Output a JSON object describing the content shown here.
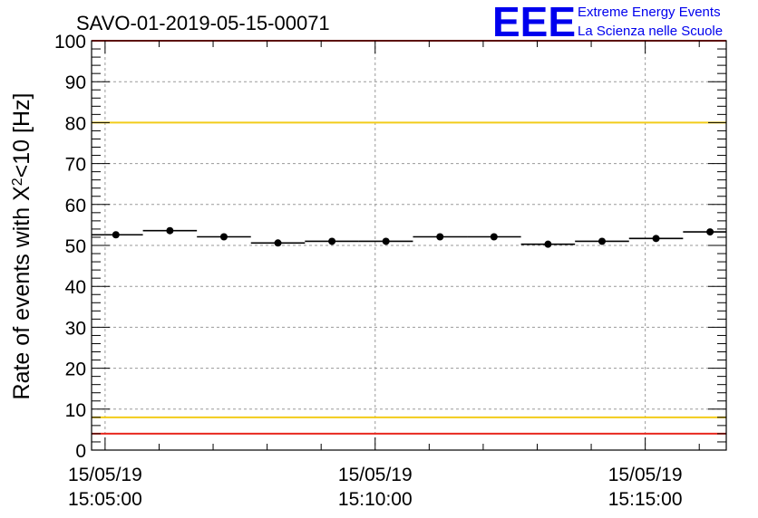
{
  "chart_data": {
    "type": "scatter",
    "title": "SAVO-01-2019-05-15-00071",
    "ylabel": "Rate of events with X^2<10 [Hz]",
    "ylabel_parts": {
      "pre": "Rate of events with X",
      "sup": "2",
      "post": "<10 [Hz]"
    },
    "xlabel": "",
    "ylim": [
      0,
      100
    ],
    "xlim_minutes": [
      -0.25,
      11.5
    ],
    "grid": true,
    "y_ticks": [
      0,
      10,
      20,
      30,
      40,
      50,
      60,
      70,
      80,
      90,
      100
    ],
    "x_ticks": [
      {
        "minute": 0,
        "date": "15/05/19",
        "time": "15:05:00"
      },
      {
        "minute": 5,
        "date": "15/05/19",
        "time": "15:10:00"
      },
      {
        "minute": 10,
        "date": "15/05/19",
        "time": "15:15:00"
      }
    ],
    "bin_width_minutes": 1,
    "points": [
      {
        "minute": 0.2,
        "value": 52.6
      },
      {
        "minute": 1.2,
        "value": 53.6
      },
      {
        "minute": 2.2,
        "value": 52.1
      },
      {
        "minute": 3.2,
        "value": 50.6
      },
      {
        "minute": 4.2,
        "value": 51.0
      },
      {
        "minute": 5.2,
        "value": 51.0
      },
      {
        "minute": 6.2,
        "value": 52.1
      },
      {
        "minute": 7.2,
        "value": 52.1
      },
      {
        "minute": 8.2,
        "value": 50.3
      },
      {
        "minute": 9.2,
        "value": 51.0
      },
      {
        "minute": 10.2,
        "value": 51.7
      },
      {
        "minute": 11.2,
        "value": 53.3
      }
    ],
    "reference_lines": [
      {
        "value": 100,
        "color": "#e8281e"
      },
      {
        "value": 80,
        "color": "#f2cc1a"
      },
      {
        "value": 8,
        "color": "#f2cc1a"
      },
      {
        "value": 4,
        "color": "#e8281e"
      }
    ]
  },
  "logo": {
    "mark": "EEE",
    "line1": "Extreme Energy Events",
    "line2": "La Scienza nelle Scuole",
    "color": "#0000ee"
  }
}
